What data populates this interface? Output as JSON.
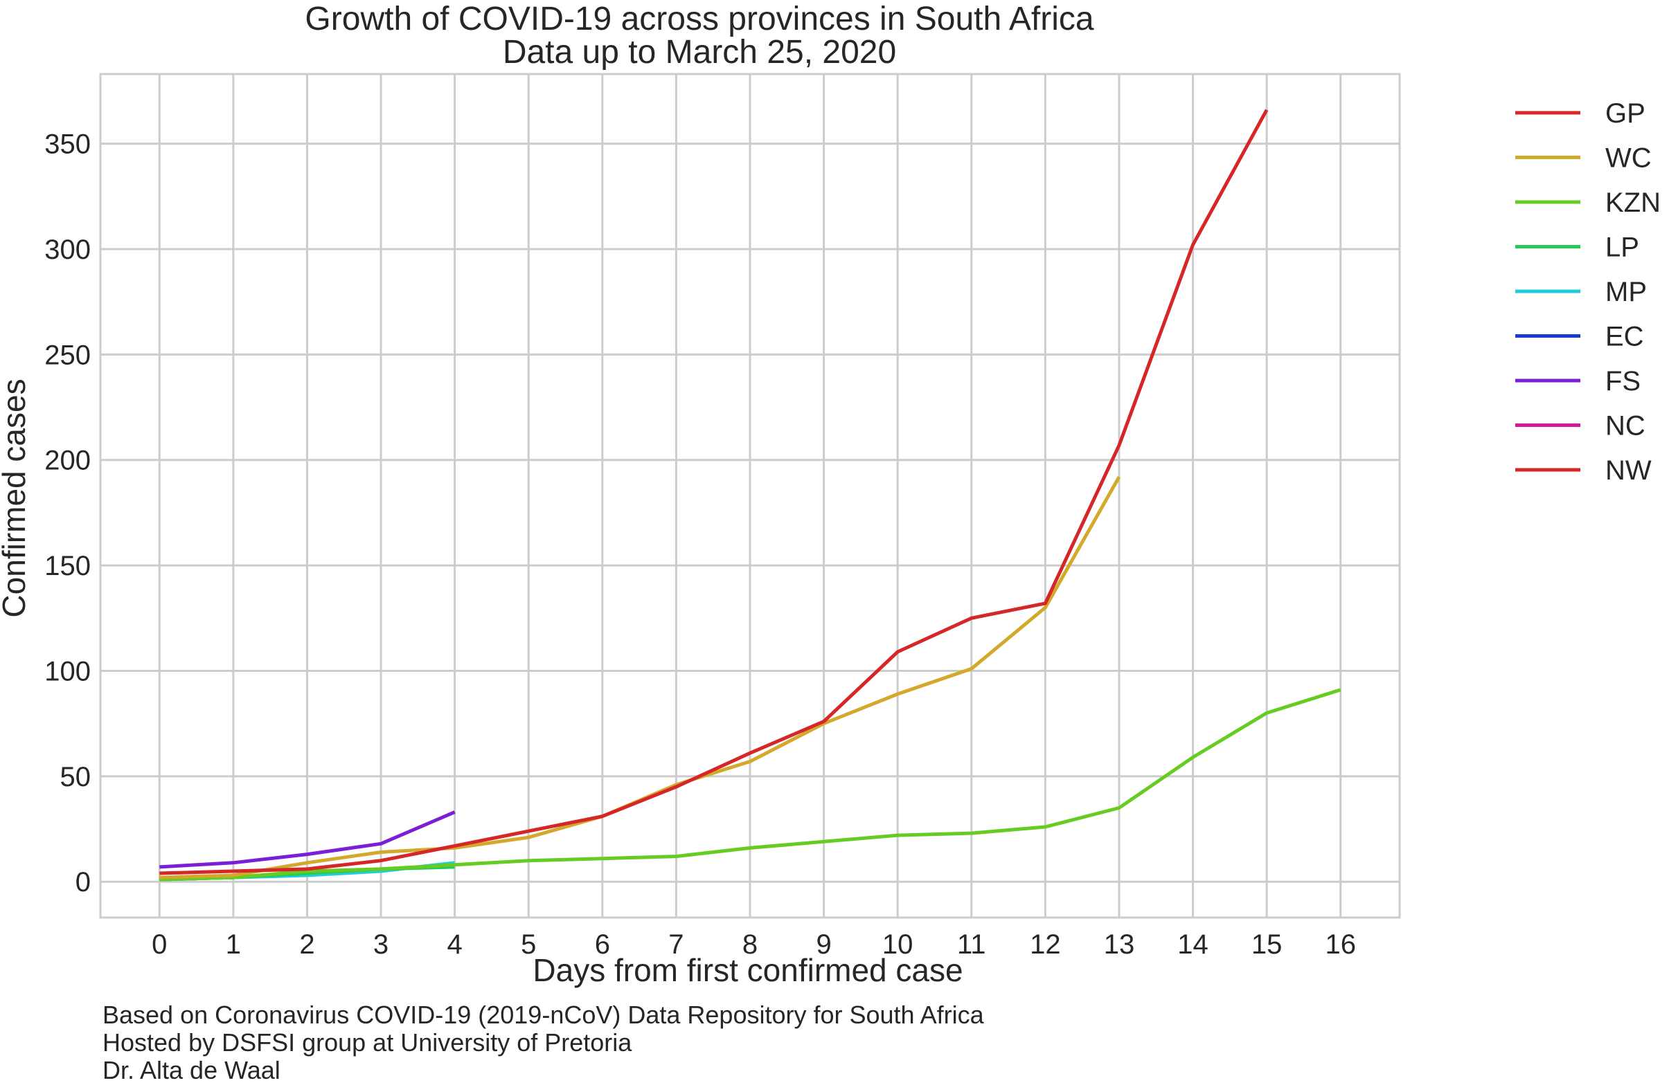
{
  "chart_data": {
    "type": "line",
    "title": "Growth of COVID-19 across provinces in South Africa",
    "subtitle": "Data up to March 25, 2020",
    "xlabel": "Days from first confirmed case",
    "ylabel": "Confirmed cases",
    "xlim": [
      -0.8,
      16.8
    ],
    "ylim": [
      -17,
      383
    ],
    "xticks": [
      0,
      1,
      2,
      3,
      4,
      5,
      6,
      7,
      8,
      9,
      10,
      11,
      12,
      13,
      14,
      15,
      16
    ],
    "yticks": [
      0,
      50,
      100,
      150,
      200,
      250,
      300,
      350
    ],
    "grid": true,
    "legend_position": "outside-right",
    "series": [
      {
        "name": "GP",
        "color": "#d62728",
        "x": [
          0,
          1,
          2,
          3,
          4,
          5,
          6,
          7,
          8,
          9,
          10,
          11,
          12,
          13,
          14,
          15
        ],
        "y": [
          4,
          5,
          6,
          10,
          17,
          24,
          31,
          45,
          61,
          76,
          109,
          125,
          132,
          207,
          302,
          366
        ]
      },
      {
        "name": "WC",
        "color": "#d4a82a",
        "x": [
          0,
          1,
          2,
          3,
          4,
          5,
          6,
          7,
          8,
          9,
          10,
          11,
          12,
          13
        ],
        "y": [
          2,
          3,
          9,
          14,
          16,
          21,
          31,
          46,
          57,
          75,
          89,
          101,
          130,
          192
        ]
      },
      {
        "name": "KZN",
        "color": "#66cc22",
        "x": [
          0,
          1,
          2,
          3,
          4,
          5,
          6,
          7,
          8,
          9,
          10,
          11,
          12,
          13,
          14,
          15,
          16
        ],
        "y": [
          1,
          2,
          5,
          6,
          8,
          10,
          11,
          12,
          16,
          19,
          22,
          23,
          26,
          35,
          59,
          80,
          91
        ]
      },
      {
        "name": "LP",
        "color": "#22cc55",
        "x": [
          0,
          1,
          2,
          3,
          4
        ],
        "y": [
          1,
          2,
          4,
          6,
          7
        ]
      },
      {
        "name": "MP",
        "color": "#22ccdd",
        "x": [
          0,
          1,
          2,
          3,
          4
        ],
        "y": [
          1,
          2,
          3,
          5,
          9
        ]
      },
      {
        "name": "EC",
        "color": "#1a3ad8",
        "x": [
          0,
          1
        ],
        "y": [
          1,
          2
        ]
      },
      {
        "name": "FS",
        "color": "#7b1fd6",
        "x": [
          0,
          1,
          2,
          3,
          4
        ],
        "y": [
          7,
          9,
          13,
          18,
          33
        ]
      },
      {
        "name": "NC",
        "color": "#d41a9a",
        "x": [],
        "y": []
      },
      {
        "name": "NW",
        "color": "#d62728",
        "x": [],
        "y": []
      }
    ]
  },
  "footnotes": [
    "Based on Coronavirus COVID-19 (2019-nCoV) Data Repository for South Africa",
    "Hosted by DSFSI group at University of Pretoria",
    "Dr. Alta de Waal"
  ]
}
